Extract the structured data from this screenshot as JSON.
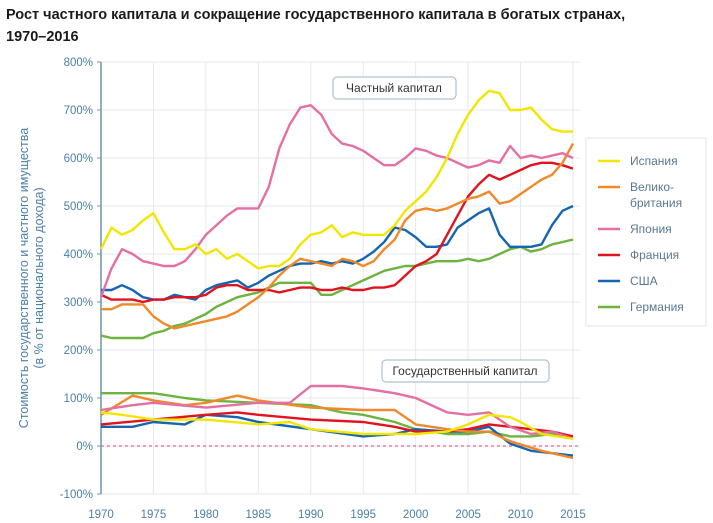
{
  "title_line1": "Рост частного капитала и сокращение государственного капитала в богатых странах,",
  "title_line2": "1970–2016",
  "chart_data": {
    "type": "line",
    "title": "Рост частного капитала и сокращение государственного капитала в богатых странах, 1970–2016",
    "ylabel_line1": "Стоимость государственного и частного имущества",
    "ylabel_line2": "(в % от национального дохода)",
    "xlabel": "",
    "xlim": [
      1970,
      2015
    ],
    "ylim": [
      -100,
      800
    ],
    "x_ticks": [
      "1970",
      "1975",
      "1980",
      "1985",
      "1990",
      "1995",
      "2000",
      "2005",
      "2010",
      "2015"
    ],
    "y_ticks": [
      "-100%",
      "0%",
      "100%",
      "200%",
      "300%",
      "400%",
      "500%",
      "600%",
      "700%",
      "800%"
    ],
    "grid": true,
    "legend_position": "right",
    "annotations": {
      "private": "Частный капитал",
      "public": "Государственный капитал"
    },
    "private_x_start": 1970,
    "series": [
      {
        "name": "Испания",
        "color": "#f2e600",
        "private": [
          410,
          455,
          440,
          450,
          470,
          485,
          445,
          410,
          410,
          420,
          400,
          410,
          390,
          400,
          385,
          370,
          375,
          375,
          390,
          420,
          440,
          445,
          460,
          435,
          445,
          440,
          440,
          440,
          460,
          490,
          510,
          530,
          560,
          600,
          650,
          690,
          720,
          740,
          735,
          700,
          700,
          705,
          680,
          660,
          655,
          655
        ],
        "public": [
          [
            1970,
            70
          ],
          [
            1972,
            65
          ],
          [
            1975,
            55
          ],
          [
            1980,
            55
          ],
          [
            1985,
            45
          ],
          [
            1988,
            50
          ],
          [
            1990,
            35
          ],
          [
            1995,
            25
          ],
          [
            2000,
            25
          ],
          [
            2003,
            30
          ],
          [
            2005,
            45
          ],
          [
            2007,
            65
          ],
          [
            2009,
            60
          ],
          [
            2010,
            50
          ],
          [
            2012,
            25
          ],
          [
            2015,
            15
          ]
        ]
      },
      {
        "name": "Велико-\nбритания",
        "label_line1": "Велико-",
        "label_line2": "британия",
        "color": "#f0892a",
        "private": [
          285,
          285,
          295,
          295,
          295,
          270,
          255,
          245,
          250,
          255,
          260,
          265,
          270,
          280,
          295,
          310,
          330,
          355,
          375,
          390,
          385,
          380,
          375,
          390,
          385,
          375,
          385,
          410,
          430,
          470,
          490,
          495,
          490,
          495,
          505,
          515,
          520,
          530,
          505,
          510,
          525,
          540,
          555,
          565,
          590,
          630
        ],
        "public": [
          [
            1970,
            65
          ],
          [
            1973,
            105
          ],
          [
            1975,
            95
          ],
          [
            1978,
            85
          ],
          [
            1980,
            90
          ],
          [
            1983,
            105
          ],
          [
            1985,
            95
          ],
          [
            1990,
            80
          ],
          [
            1995,
            75
          ],
          [
            1998,
            75
          ],
          [
            2000,
            45
          ],
          [
            2003,
            35
          ],
          [
            2005,
            30
          ],
          [
            2007,
            30
          ],
          [
            2009,
            10
          ],
          [
            2012,
            -10
          ],
          [
            2015,
            -25
          ]
        ]
      },
      {
        "name": "Япония",
        "color": "#e46fa3",
        "private": [
          310,
          370,
          410,
          400,
          385,
          380,
          375,
          375,
          385,
          410,
          440,
          460,
          480,
          495,
          495,
          495,
          540,
          620,
          670,
          705,
          710,
          690,
          650,
          630,
          625,
          615,
          600,
          585,
          585,
          600,
          620,
          615,
          605,
          600,
          590,
          580,
          585,
          595,
          590,
          625,
          600,
          605,
          600,
          605,
          610,
          600
        ],
        "public": [
          [
            1970,
            75
          ],
          [
            1973,
            85
          ],
          [
            1975,
            90
          ],
          [
            1980,
            80
          ],
          [
            1985,
            90
          ],
          [
            1988,
            90
          ],
          [
            1990,
            125
          ],
          [
            1993,
            125
          ],
          [
            1995,
            120
          ],
          [
            1998,
            110
          ],
          [
            2000,
            100
          ],
          [
            2003,
            70
          ],
          [
            2005,
            65
          ],
          [
            2007,
            70
          ],
          [
            2009,
            40
          ],
          [
            2011,
            25
          ],
          [
            2013,
            30
          ],
          [
            2015,
            15
          ]
        ]
      },
      {
        "name": "Франция",
        "color": "#e0131e",
        "private": [
          315,
          305,
          305,
          305,
          300,
          305,
          305,
          310,
          310,
          310,
          315,
          330,
          335,
          335,
          325,
          325,
          325,
          320,
          325,
          330,
          330,
          325,
          325,
          330,
          325,
          325,
          330,
          330,
          335,
          355,
          375,
          385,
          400,
          440,
          480,
          520,
          545,
          565,
          555,
          565,
          575,
          585,
          590,
          590,
          585,
          578
        ],
        "public": [
          [
            1970,
            45
          ],
          [
            1975,
            55
          ],
          [
            1980,
            65
          ],
          [
            1983,
            70
          ],
          [
            1985,
            65
          ],
          [
            1990,
            55
          ],
          [
            1995,
            50
          ],
          [
            1998,
            40
          ],
          [
            2000,
            30
          ],
          [
            2003,
            30
          ],
          [
            2005,
            35
          ],
          [
            2007,
            45
          ],
          [
            2009,
            40
          ],
          [
            2011,
            35
          ],
          [
            2013,
            30
          ],
          [
            2015,
            20
          ]
        ]
      },
      {
        "name": "США",
        "color": "#1565b0",
        "private": [
          325,
          325,
          335,
          325,
          310,
          305,
          305,
          315,
          310,
          305,
          325,
          335,
          340,
          345,
          330,
          340,
          355,
          365,
          375,
          380,
          380,
          385,
          380,
          385,
          380,
          390,
          405,
          425,
          455,
          450,
          435,
          415,
          415,
          420,
          455,
          470,
          485,
          495,
          440,
          415,
          415,
          415,
          420,
          460,
          490,
          500
        ],
        "public": [
          [
            1970,
            40
          ],
          [
            1973,
            40
          ],
          [
            1975,
            50
          ],
          [
            1978,
            45
          ],
          [
            1980,
            65
          ],
          [
            1983,
            60
          ],
          [
            1985,
            50
          ],
          [
            1990,
            35
          ],
          [
            1995,
            20
          ],
          [
            1998,
            25
          ],
          [
            2000,
            35
          ],
          [
            2003,
            30
          ],
          [
            2005,
            30
          ],
          [
            2007,
            40
          ],
          [
            2009,
            5
          ],
          [
            2011,
            -10
          ],
          [
            2013,
            -15
          ],
          [
            2015,
            -20
          ]
        ]
      },
      {
        "name": "Германия",
        "color": "#6db33f",
        "private": [
          230,
          225,
          225,
          225,
          225,
          235,
          240,
          250,
          255,
          265,
          275,
          290,
          300,
          310,
          315,
          320,
          330,
          340,
          340,
          340,
          340,
          315,
          315,
          325,
          335,
          345,
          355,
          365,
          370,
          375,
          375,
          380,
          385,
          385,
          385,
          390,
          385,
          390,
          400,
          410,
          415,
          405,
          410,
          420,
          425,
          430
        ],
        "public": [
          [
            1970,
            110
          ],
          [
            1975,
            110
          ],
          [
            1978,
            100
          ],
          [
            1980,
            95
          ],
          [
            1985,
            90
          ],
          [
            1990,
            85
          ],
          [
            1993,
            70
          ],
          [
            1995,
            65
          ],
          [
            1998,
            50
          ],
          [
            2000,
            35
          ],
          [
            2003,
            25
          ],
          [
            2005,
            25
          ],
          [
            2007,
            30
          ],
          [
            2009,
            20
          ],
          [
            2011,
            20
          ],
          [
            2013,
            25
          ],
          [
            2015,
            20
          ]
        ]
      }
    ]
  }
}
